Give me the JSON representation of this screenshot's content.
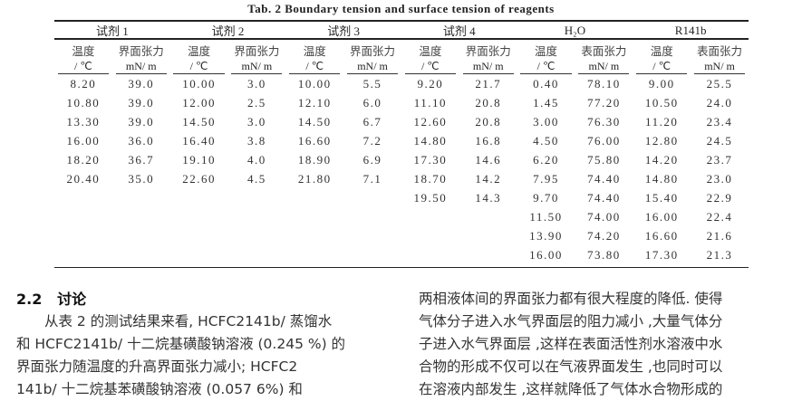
{
  "caption": "Tab. 2    Boundary tension and surface tension of reagents",
  "groups": [
    "试剂 1",
    "试剂 2",
    "试剂 3",
    "试剂 4",
    "H₂O",
    "R141b"
  ],
  "header1": [
    "温度",
    "界面张力",
    "温度",
    "界面张力",
    "温度",
    "界面张力",
    "温度",
    "界面张力",
    "温度",
    "表面张力",
    "温度",
    "表面张力"
  ],
  "header2": [
    "/ ℃",
    "mN/ m",
    "/ ℃",
    "mN/ m",
    "/ ℃",
    "mN/ m",
    "/ ℃",
    "mN/ m",
    "/ ℃",
    "mN/ m",
    "/ ℃",
    "mN/ m"
  ],
  "rows": [
    [
      "8.20",
      "39.0",
      "10.00",
      "3.0",
      "10.00",
      "5.5",
      "9.20",
      "21.7",
      "0.40",
      "78.10",
      "9.00",
      "25.5"
    ],
    [
      "10.80",
      "39.0",
      "12.00",
      "2.5",
      "12.10",
      "6.0",
      "11.10",
      "20.8",
      "1.45",
      "77.20",
      "10.50",
      "24.0"
    ],
    [
      "13.30",
      "39.0",
      "14.50",
      "3.0",
      "14.50",
      "6.7",
      "12.60",
      "20.8",
      "3.00",
      "76.30",
      "11.20",
      "23.4"
    ],
    [
      "16.00",
      "36.0",
      "16.40",
      "3.8",
      "16.60",
      "7.2",
      "14.80",
      "16.8",
      "4.50",
      "76.00",
      "12.80",
      "24.5"
    ],
    [
      "18.20",
      "36.7",
      "19.10",
      "4.0",
      "18.90",
      "6.9",
      "17.30",
      "14.6",
      "6.20",
      "75.80",
      "14.20",
      "23.7"
    ],
    [
      "20.40",
      "35.0",
      "22.60",
      "4.5",
      "21.80",
      "7.1",
      "18.70",
      "14.2",
      "7.95",
      "74.40",
      "14.80",
      "23.0"
    ],
    [
      "",
      "",
      "",
      "",
      "",
      "",
      "19.50",
      "14.3",
      "9.70",
      "74.40",
      "15.40",
      "22.9"
    ],
    [
      "",
      "",
      "",
      "",
      "",
      "",
      "",
      "",
      "11.50",
      "74.00",
      "16.00",
      "22.4"
    ],
    [
      "",
      "",
      "",
      "",
      "",
      "",
      "",
      "",
      "13.90",
      "74.20",
      "16.60",
      "21.6"
    ],
    [
      "",
      "",
      "",
      "",
      "",
      "",
      "",
      "",
      "16.00",
      "73.80",
      "17.30",
      "21.3"
    ]
  ],
  "section": {
    "number": "2.2",
    "title": "讨论"
  },
  "left_lines": [
    "　　从表 2 的测试结果来看, HCFC2141b/ 蒸馏水",
    "和 HCFC2141b/ 十二烷基磺酸钠溶液 (0.245 %) 的",
    "界面张力随温度的升高界面张力减小; HCFC2",
    "141b/ 十二烷基苯磺酸钠溶液 (0.057 6%) 和"
  ],
  "right_lines": [
    "两相液体间的界面张力都有很大程度的降低. 使得",
    "气体分子进入水气界面层的阻力减小 ,大量气体分",
    "子进入水气界面层 ,这样在表面活性剂水溶液中水",
    "合物的形成不仅可以在气液界面发生 ,也同时可以",
    "在溶液内部发生 ,这样就降低了气体水合物形成的"
  ]
}
